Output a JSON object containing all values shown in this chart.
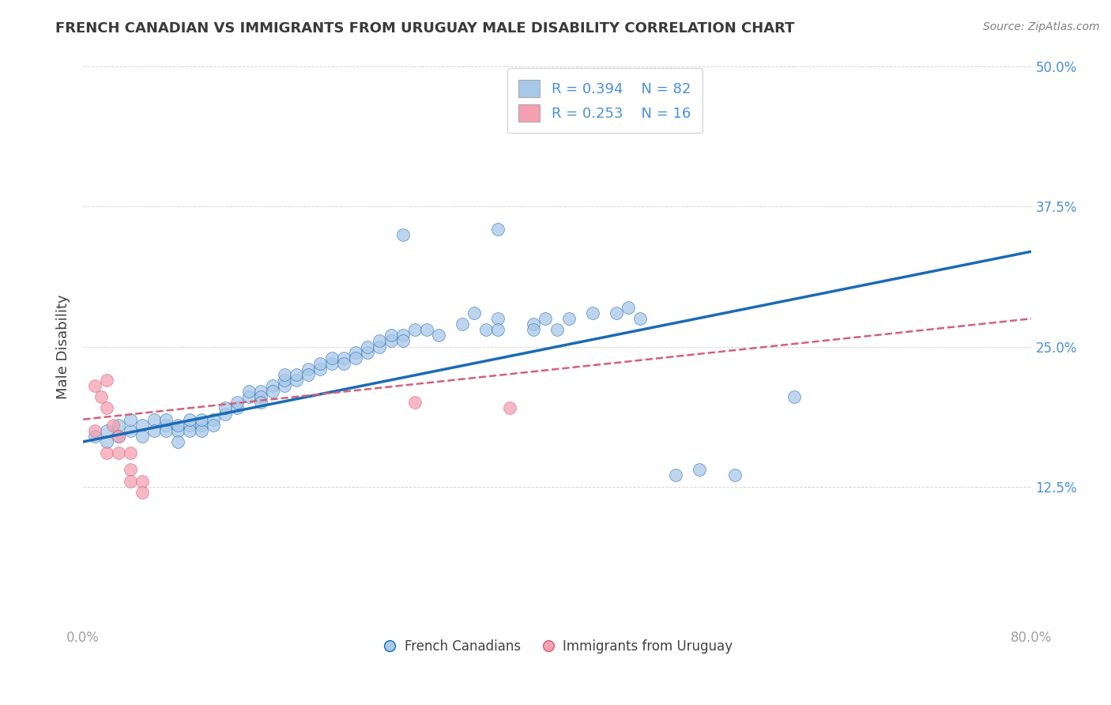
{
  "title": "FRENCH CANADIAN VS IMMIGRANTS FROM URUGUAY MALE DISABILITY CORRELATION CHART",
  "source": "Source: ZipAtlas.com",
  "xlabel": "",
  "ylabel": "Male Disability",
  "xlim": [
    0.0,
    0.8
  ],
  "ylim": [
    0.0,
    0.5
  ],
  "xticks": [
    0.0,
    0.2,
    0.4,
    0.6,
    0.8
  ],
  "xticklabels": [
    "0.0%",
    "",
    "",
    "",
    "80.0%"
  ],
  "yticks": [
    0.0,
    0.125,
    0.25,
    0.375,
    0.5
  ],
  "yticklabels_right": [
    "",
    "12.5%",
    "25.0%",
    "37.5%",
    "50.0%"
  ],
  "legend_labels": [
    "French Canadians",
    "Immigrants from Uruguay"
  ],
  "legend_r_n": [
    {
      "R": "0.394",
      "N": "82",
      "color": "#a8c8e8"
    },
    {
      "R": "0.253",
      "N": "16",
      "color": "#f4a0b0"
    }
  ],
  "blue_scatter": [
    [
      0.01,
      0.17
    ],
    [
      0.02,
      0.175
    ],
    [
      0.02,
      0.165
    ],
    [
      0.03,
      0.18
    ],
    [
      0.03,
      0.17
    ],
    [
      0.04,
      0.175
    ],
    [
      0.04,
      0.185
    ],
    [
      0.05,
      0.18
    ],
    [
      0.05,
      0.17
    ],
    [
      0.06,
      0.185
    ],
    [
      0.06,
      0.175
    ],
    [
      0.07,
      0.18
    ],
    [
      0.07,
      0.175
    ],
    [
      0.07,
      0.185
    ],
    [
      0.08,
      0.175
    ],
    [
      0.08,
      0.18
    ],
    [
      0.08,
      0.165
    ],
    [
      0.09,
      0.18
    ],
    [
      0.09,
      0.175
    ],
    [
      0.09,
      0.185
    ],
    [
      0.1,
      0.18
    ],
    [
      0.1,
      0.175
    ],
    [
      0.1,
      0.185
    ],
    [
      0.11,
      0.185
    ],
    [
      0.11,
      0.18
    ],
    [
      0.12,
      0.19
    ],
    [
      0.12,
      0.195
    ],
    [
      0.13,
      0.195
    ],
    [
      0.13,
      0.2
    ],
    [
      0.14,
      0.205
    ],
    [
      0.14,
      0.21
    ],
    [
      0.15,
      0.21
    ],
    [
      0.15,
      0.205
    ],
    [
      0.15,
      0.2
    ],
    [
      0.16,
      0.215
    ],
    [
      0.16,
      0.21
    ],
    [
      0.17,
      0.215
    ],
    [
      0.17,
      0.22
    ],
    [
      0.17,
      0.225
    ],
    [
      0.18,
      0.22
    ],
    [
      0.18,
      0.225
    ],
    [
      0.19,
      0.23
    ],
    [
      0.19,
      0.225
    ],
    [
      0.2,
      0.23
    ],
    [
      0.2,
      0.235
    ],
    [
      0.21,
      0.235
    ],
    [
      0.21,
      0.24
    ],
    [
      0.22,
      0.24
    ],
    [
      0.22,
      0.235
    ],
    [
      0.23,
      0.245
    ],
    [
      0.23,
      0.24
    ],
    [
      0.24,
      0.245
    ],
    [
      0.24,
      0.25
    ],
    [
      0.25,
      0.25
    ],
    [
      0.25,
      0.255
    ],
    [
      0.26,
      0.255
    ],
    [
      0.26,
      0.26
    ],
    [
      0.27,
      0.26
    ],
    [
      0.27,
      0.255
    ],
    [
      0.28,
      0.265
    ],
    [
      0.29,
      0.265
    ],
    [
      0.3,
      0.26
    ],
    [
      0.32,
      0.27
    ],
    [
      0.33,
      0.28
    ],
    [
      0.34,
      0.265
    ],
    [
      0.35,
      0.275
    ],
    [
      0.35,
      0.265
    ],
    [
      0.38,
      0.27
    ],
    [
      0.38,
      0.265
    ],
    [
      0.39,
      0.275
    ],
    [
      0.4,
      0.265
    ],
    [
      0.41,
      0.275
    ],
    [
      0.43,
      0.28
    ],
    [
      0.27,
      0.35
    ],
    [
      0.35,
      0.355
    ],
    [
      0.45,
      0.28
    ],
    [
      0.46,
      0.285
    ],
    [
      0.47,
      0.275
    ],
    [
      0.5,
      0.135
    ],
    [
      0.52,
      0.14
    ],
    [
      0.55,
      0.135
    ],
    [
      0.6,
      0.205
    ]
  ],
  "pink_scatter": [
    [
      0.01,
      0.215
    ],
    [
      0.01,
      0.175
    ],
    [
      0.015,
      0.205
    ],
    [
      0.02,
      0.22
    ],
    [
      0.02,
      0.195
    ],
    [
      0.02,
      0.155
    ],
    [
      0.025,
      0.18
    ],
    [
      0.03,
      0.17
    ],
    [
      0.03,
      0.155
    ],
    [
      0.04,
      0.155
    ],
    [
      0.04,
      0.14
    ],
    [
      0.04,
      0.13
    ],
    [
      0.05,
      0.13
    ],
    [
      0.05,
      0.12
    ],
    [
      0.28,
      0.2
    ],
    [
      0.36,
      0.195
    ]
  ],
  "blue_line_x": [
    0.0,
    0.8
  ],
  "blue_line_y": [
    0.165,
    0.335
  ],
  "pink_line_x": [
    0.0,
    0.8
  ],
  "pink_line_y": [
    0.185,
    0.275
  ],
  "blue_line_color": "#1a6bb5",
  "pink_line_color": "#d4607a",
  "scatter_blue_color": "#a8c8e8",
  "scatter_pink_color": "#f4a0b0",
  "background_color": "#ffffff",
  "grid_color": "#cccccc",
  "title_color": "#3a3a3a",
  "source_color": "#808080",
  "axis_label_color": "#404040",
  "right_tick_color": "#4a90d9",
  "left_tick_color": "#a0a0a0"
}
